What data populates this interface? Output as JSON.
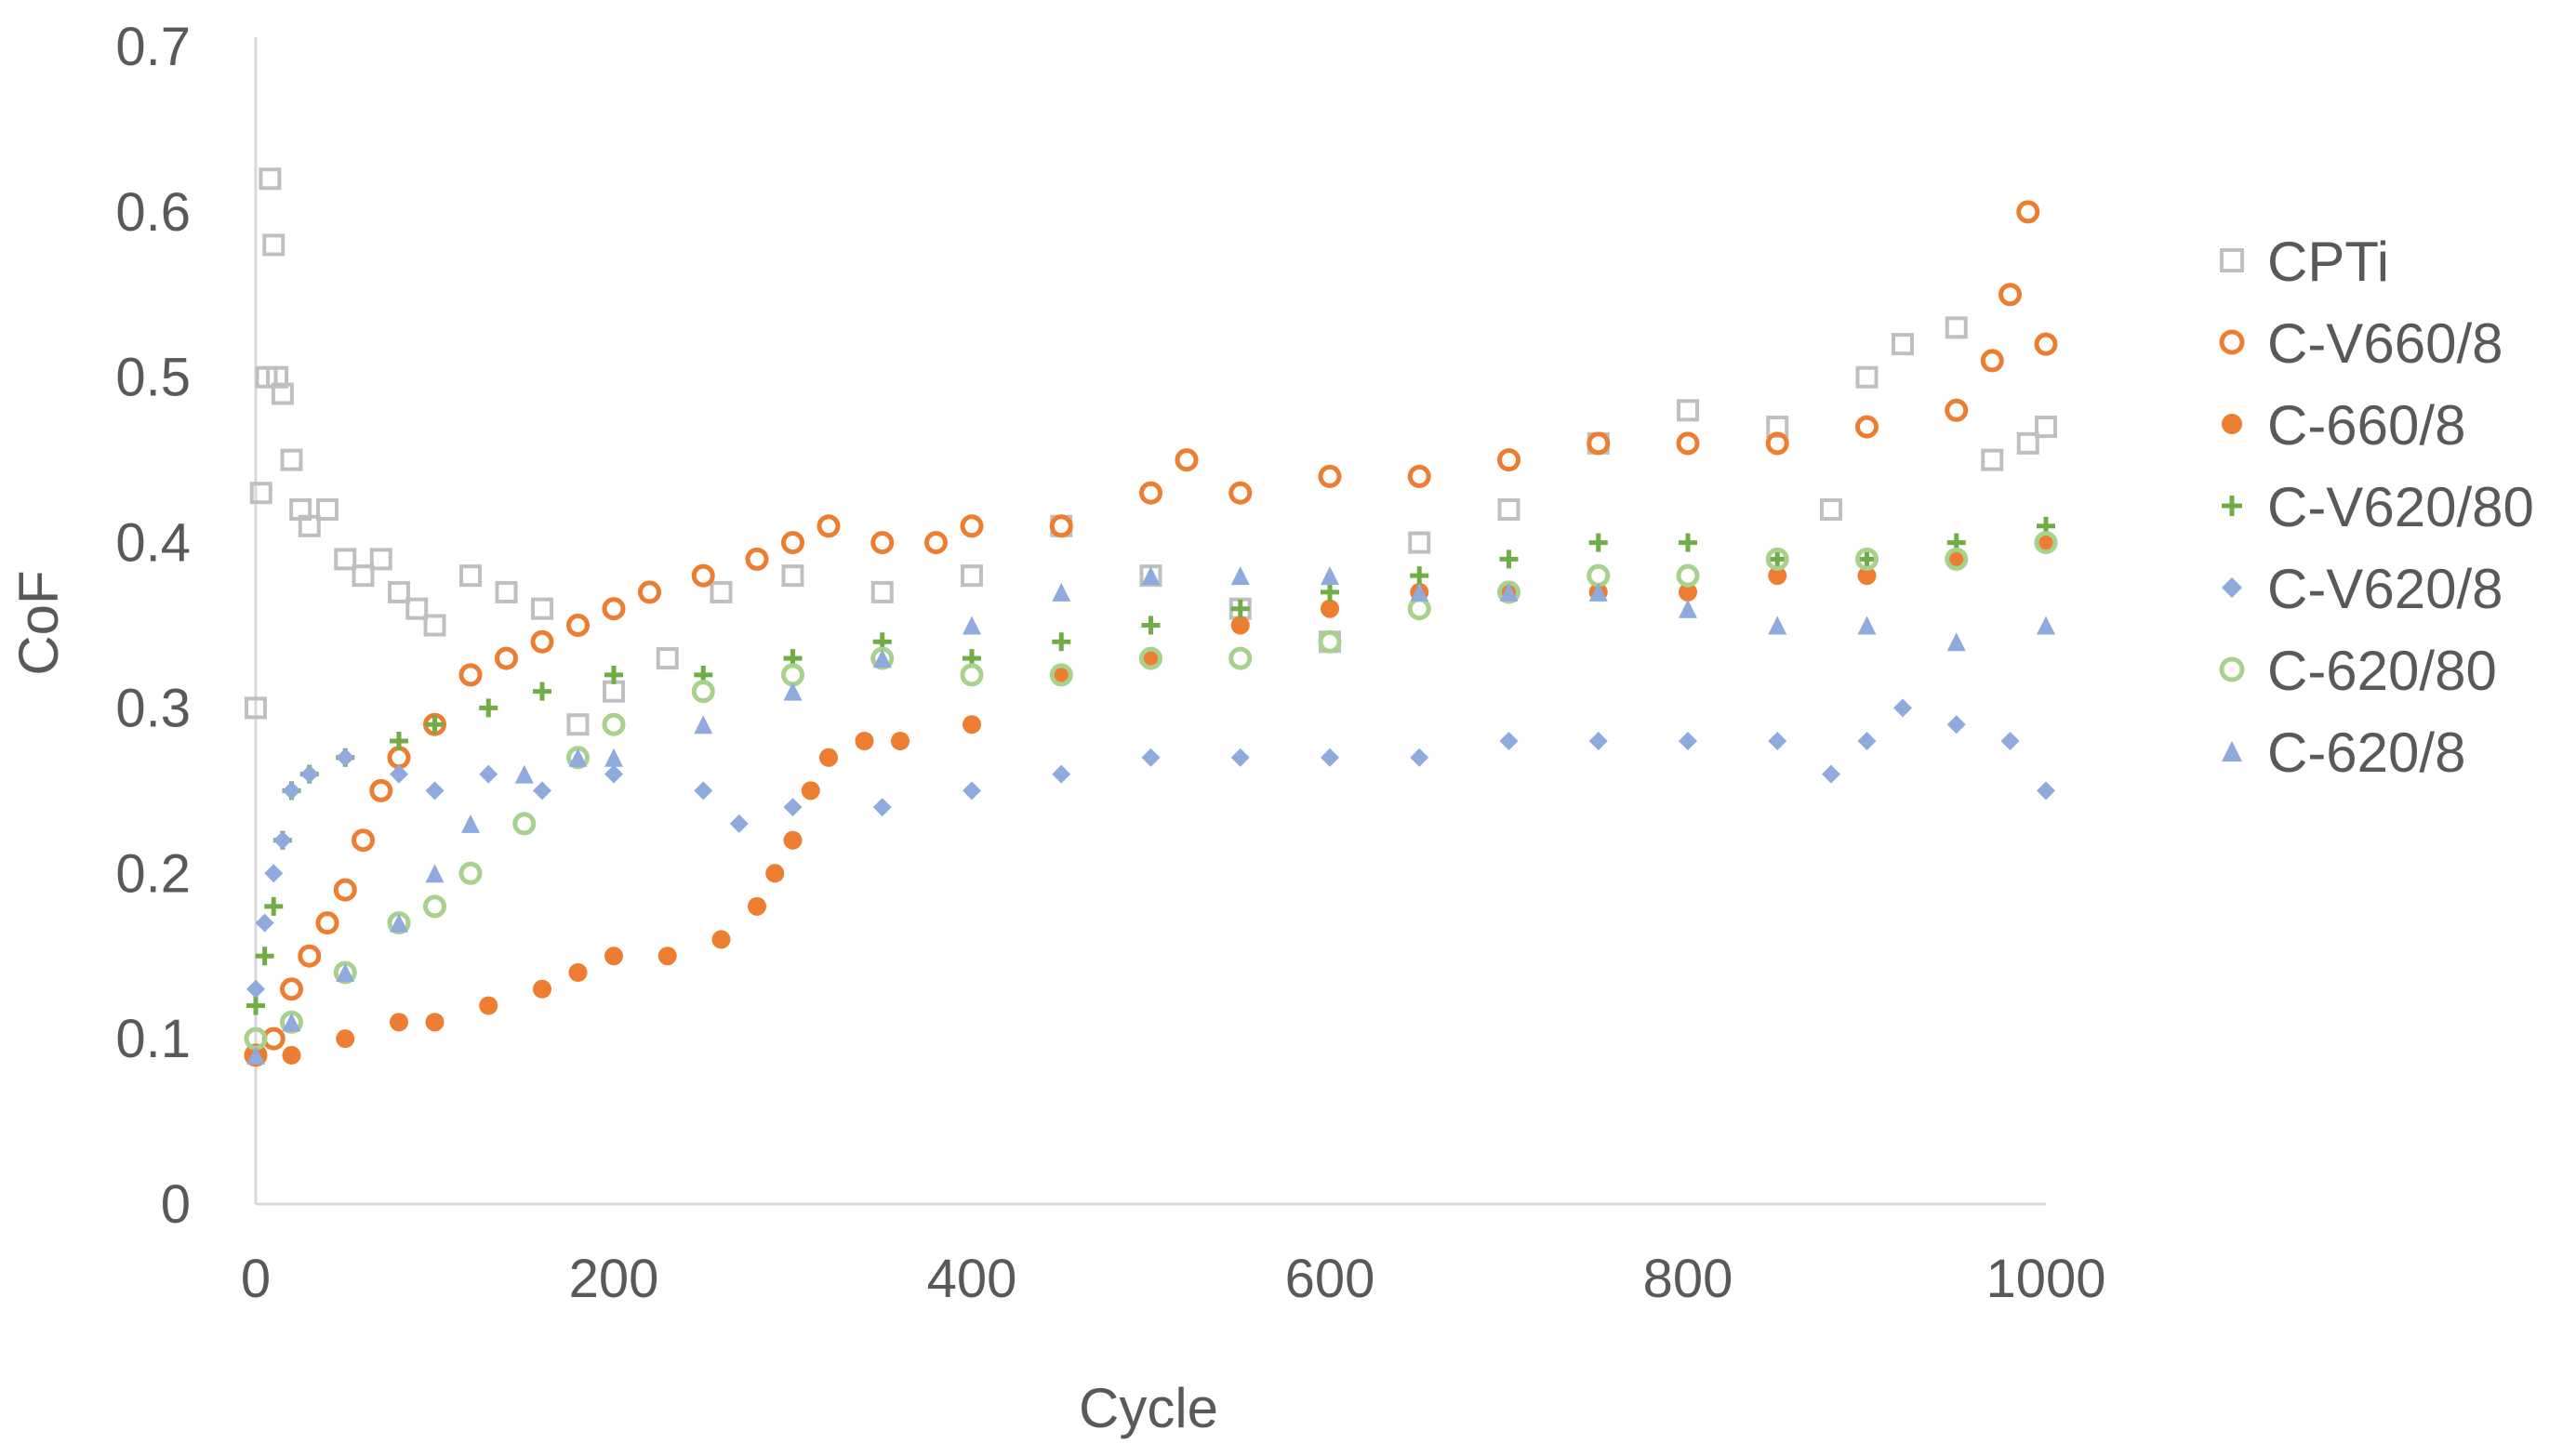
{
  "chart_data": {
    "type": "scatter",
    "title": "",
    "xlabel": "Cycle",
    "ylabel": "CoF",
    "xlim": [
      0,
      1000
    ],
    "ylim": [
      0,
      0.7
    ],
    "x_ticks": [
      "0",
      "200",
      "400",
      "600",
      "800",
      "1000"
    ],
    "y_ticks": [
      "0",
      "0.1",
      "0.2",
      "0.3",
      "0.4",
      "0.5",
      "0.6",
      "0.7"
    ],
    "grid": false,
    "legend_position": "right",
    "series": [
      {
        "name": "CPTi",
        "marker": "open-square",
        "color": "#BFBFBF",
        "x": [
          0,
          3,
          6,
          8,
          10,
          12,
          15,
          20,
          25,
          30,
          40,
          50,
          60,
          70,
          80,
          90,
          100,
          120,
          140,
          160,
          180,
          200,
          230,
          260,
          300,
          350,
          400,
          450,
          500,
          550,
          600,
          650,
          700,
          750,
          800,
          850,
          880,
          900,
          920,
          950,
          970,
          990,
          1000
        ],
        "y": [
          0.3,
          0.43,
          0.5,
          0.62,
          0.58,
          0.5,
          0.49,
          0.45,
          0.42,
          0.41,
          0.42,
          0.39,
          0.38,
          0.39,
          0.37,
          0.36,
          0.35,
          0.38,
          0.37,
          0.36,
          0.29,
          0.31,
          0.33,
          0.37,
          0.38,
          0.37,
          0.38,
          0.41,
          0.38,
          0.36,
          0.34,
          0.4,
          0.42,
          0.46,
          0.48,
          0.47,
          0.42,
          0.5,
          0.52,
          0.53,
          0.45,
          0.46,
          0.47
        ]
      },
      {
        "name": "C-V660/8",
        "marker": "open-circle",
        "color": "#ED7D31",
        "x": [
          0,
          10,
          20,
          30,
          40,
          50,
          60,
          70,
          80,
          100,
          120,
          140,
          160,
          180,
          200,
          220,
          250,
          280,
          300,
          320,
          350,
          380,
          400,
          450,
          500,
          520,
          550,
          600,
          650,
          700,
          750,
          800,
          850,
          900,
          950,
          970,
          980,
          990,
          1000
        ],
        "y": [
          0.09,
          0.1,
          0.13,
          0.15,
          0.17,
          0.19,
          0.22,
          0.25,
          0.27,
          0.29,
          0.32,
          0.33,
          0.34,
          0.35,
          0.36,
          0.37,
          0.38,
          0.39,
          0.4,
          0.41,
          0.4,
          0.4,
          0.41,
          0.41,
          0.43,
          0.45,
          0.43,
          0.44,
          0.44,
          0.45,
          0.46,
          0.46,
          0.46,
          0.47,
          0.48,
          0.51,
          0.55,
          0.6,
          0.52
        ]
      },
      {
        "name": "C-660/8",
        "marker": "filled-circle",
        "color": "#ED7D31",
        "x": [
          0,
          20,
          50,
          80,
          100,
          130,
          160,
          180,
          200,
          230,
          260,
          280,
          290,
          300,
          310,
          320,
          340,
          360,
          400,
          450,
          500,
          550,
          600,
          650,
          700,
          750,
          800,
          850,
          900,
          950,
          1000
        ],
        "y": [
          0.09,
          0.09,
          0.1,
          0.11,
          0.11,
          0.12,
          0.13,
          0.14,
          0.15,
          0.15,
          0.16,
          0.18,
          0.2,
          0.22,
          0.25,
          0.27,
          0.28,
          0.28,
          0.29,
          0.32,
          0.33,
          0.35,
          0.36,
          0.37,
          0.37,
          0.37,
          0.37,
          0.38,
          0.38,
          0.39,
          0.4
        ]
      },
      {
        "name": "C-V620/80",
        "marker": "plus",
        "color": "#70AD47",
        "x": [
          0,
          5,
          10,
          15,
          20,
          30,
          50,
          80,
          100,
          130,
          160,
          200,
          250,
          300,
          350,
          400,
          450,
          500,
          550,
          600,
          650,
          700,
          750,
          800,
          850,
          900,
          950,
          1000
        ],
        "y": [
          0.12,
          0.15,
          0.18,
          0.22,
          0.25,
          0.26,
          0.27,
          0.28,
          0.29,
          0.3,
          0.31,
          0.32,
          0.32,
          0.33,
          0.34,
          0.33,
          0.34,
          0.35,
          0.36,
          0.37,
          0.38,
          0.39,
          0.4,
          0.4,
          0.39,
          0.39,
          0.4,
          0.41
        ]
      },
      {
        "name": "C-V620/8",
        "marker": "filled-diamond",
        "color": "#8FAADC",
        "x": [
          0,
          5,
          10,
          15,
          20,
          30,
          50,
          80,
          100,
          130,
          160,
          200,
          250,
          270,
          300,
          350,
          400,
          450,
          500,
          550,
          600,
          650,
          700,
          750,
          800,
          850,
          880,
          900,
          920,
          950,
          980,
          1000
        ],
        "y": [
          0.13,
          0.17,
          0.2,
          0.22,
          0.25,
          0.26,
          0.27,
          0.26,
          0.25,
          0.26,
          0.25,
          0.26,
          0.25,
          0.23,
          0.24,
          0.24,
          0.25,
          0.26,
          0.27,
          0.27,
          0.27,
          0.27,
          0.28,
          0.28,
          0.28,
          0.28,
          0.26,
          0.28,
          0.3,
          0.29,
          0.28,
          0.25
        ]
      },
      {
        "name": "C-620/80",
        "marker": "open-circle",
        "color": "#A9D18E",
        "x": [
          0,
          20,
          50,
          80,
          100,
          120,
          150,
          180,
          200,
          250,
          300,
          350,
          400,
          450,
          500,
          550,
          600,
          650,
          700,
          750,
          800,
          850,
          900,
          950,
          1000
        ],
        "y": [
          0.1,
          0.11,
          0.14,
          0.17,
          0.18,
          0.2,
          0.23,
          0.27,
          0.29,
          0.31,
          0.32,
          0.33,
          0.32,
          0.32,
          0.33,
          0.33,
          0.34,
          0.36,
          0.37,
          0.38,
          0.38,
          0.39,
          0.39,
          0.39,
          0.4
        ]
      },
      {
        "name": "C-620/8",
        "marker": "filled-triangle",
        "color": "#8FAADC",
        "x": [
          0,
          20,
          50,
          80,
          100,
          120,
          150,
          180,
          200,
          250,
          300,
          350,
          400,
          450,
          500,
          550,
          600,
          650,
          700,
          750,
          800,
          850,
          900,
          950,
          1000
        ],
        "y": [
          0.09,
          0.11,
          0.14,
          0.17,
          0.2,
          0.23,
          0.26,
          0.27,
          0.27,
          0.29,
          0.31,
          0.33,
          0.35,
          0.37,
          0.38,
          0.38,
          0.38,
          0.37,
          0.37,
          0.37,
          0.36,
          0.35,
          0.35,
          0.34,
          0.35
        ]
      }
    ]
  }
}
